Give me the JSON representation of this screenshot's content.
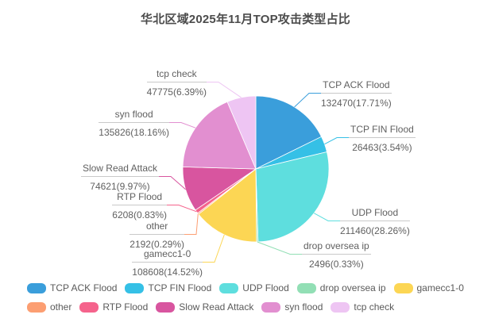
{
  "chart_data": {
    "type": "pie",
    "title": "华北区域2025年11月TOP攻击类型占比",
    "legend_position": "bottom",
    "label_format": "name над count(percent%)",
    "slices": [
      {
        "name": "TCP ACK Flood",
        "count": 132470,
        "percent": 17.71,
        "label": "132470(17.71%)",
        "color": "#3a9edb"
      },
      {
        "name": "TCP FIN Flood",
        "count": 26463,
        "percent": 3.54,
        "label": "26463(3.54%)",
        "color": "#35c0e6"
      },
      {
        "name": "UDP Flood",
        "count": 211460,
        "percent": 28.26,
        "label": "211460(28.26%)",
        "color": "#5edede"
      },
      {
        "name": "drop oversea ip",
        "count": 2496,
        "percent": 0.33,
        "label": "2496(0.33%)",
        "color": "#92dfb5"
      },
      {
        "name": "gamecc1-0",
        "count": 108608,
        "percent": 14.52,
        "label": "108608(14.52%)",
        "color": "#fcd654"
      },
      {
        "name": "other",
        "count": 2192,
        "percent": 0.29,
        "label": "2192(0.29%)",
        "color": "#fc9e72"
      },
      {
        "name": "RTP Flood",
        "count": 6208,
        "percent": 0.83,
        "label": "6208(0.83%)",
        "color": "#f5638c"
      },
      {
        "name": "Slow Read Attack",
        "count": 74621,
        "percent": 9.97,
        "label": "74621(9.97%)",
        "color": "#d8559f"
      },
      {
        "name": "syn flood",
        "count": 135826,
        "percent": 18.16,
        "label": "135826(18.16%)",
        "color": "#e28fd0"
      },
      {
        "name": "tcp check",
        "count": 47775,
        "percent": 6.39,
        "label": "47775(6.39%)",
        "color": "#eec5f3"
      }
    ]
  }
}
